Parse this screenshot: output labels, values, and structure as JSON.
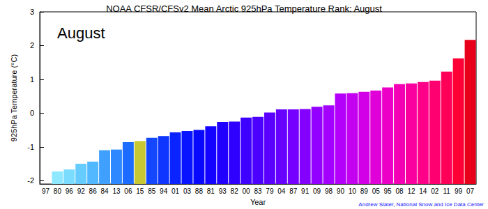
{
  "chart_data": {
    "type": "bar",
    "title": "NOAA CFSR/CFSv2 Mean Arctic 925hPa Temperature Rank: August",
    "annotations": [
      "August",
      "Andrew Slater, National Snow and Ice Data Center"
    ],
    "xlabel": "Year",
    "ylabel": "925hPa Temperature (°C)",
    "categories": [
      "97",
      "80",
      "96",
      "92",
      "86",
      "84",
      "13",
      "06",
      "15",
      "85",
      "94",
      "01",
      "03",
      "88",
      "81",
      "93",
      "82",
      "00",
      "83",
      "79",
      "04",
      "87",
      "91",
      "09",
      "98",
      "90",
      "10",
      "89",
      "05",
      "95",
      "08",
      "12",
      "14",
      "02",
      "11",
      "99",
      "07"
    ],
    "values": [
      -2.1,
      -1.73,
      -1.67,
      -1.5,
      -1.44,
      -1.1,
      -1.08,
      -0.86,
      -0.83,
      -0.73,
      -0.68,
      -0.57,
      -0.53,
      -0.5,
      -0.39,
      -0.26,
      -0.25,
      -0.13,
      -0.11,
      0.02,
      0.11,
      0.11,
      0.12,
      0.19,
      0.23,
      0.58,
      0.59,
      0.63,
      0.67,
      0.76,
      0.86,
      0.88,
      0.92,
      0.96,
      1.23,
      1.62,
      2.17
    ],
    "colors": [
      "#9ff3ff",
      "#8ee8ff",
      "#7adcff",
      "#66ccff",
      "#52b8ff",
      "#3fa0ff",
      "#2e88ff",
      "#1e6cff",
      "#c8c832",
      "#1448ff",
      "#0e36ff",
      "#0a24ff",
      "#0814ff",
      "#0808ff",
      "#1404ff",
      "#2200ff",
      "#3000ff",
      "#3e00ff",
      "#4c00ff",
      "#5a00ff",
      "#6800ff",
      "#7600ff",
      "#8400ff",
      "#9400ff",
      "#a400ff",
      "#b400fa",
      "#c400f0",
      "#d200e6",
      "#e000d8",
      "#ec00c8",
      "#f400b4",
      "#fa009e",
      "#ff0088",
      "#ff0070",
      "#ff0058",
      "#ff0036",
      "#e8001a"
    ],
    "ylim": [
      -2.1,
      3
    ],
    "yticks": [
      -2,
      -1,
      0,
      1,
      2,
      3
    ],
    "grid": false
  }
}
